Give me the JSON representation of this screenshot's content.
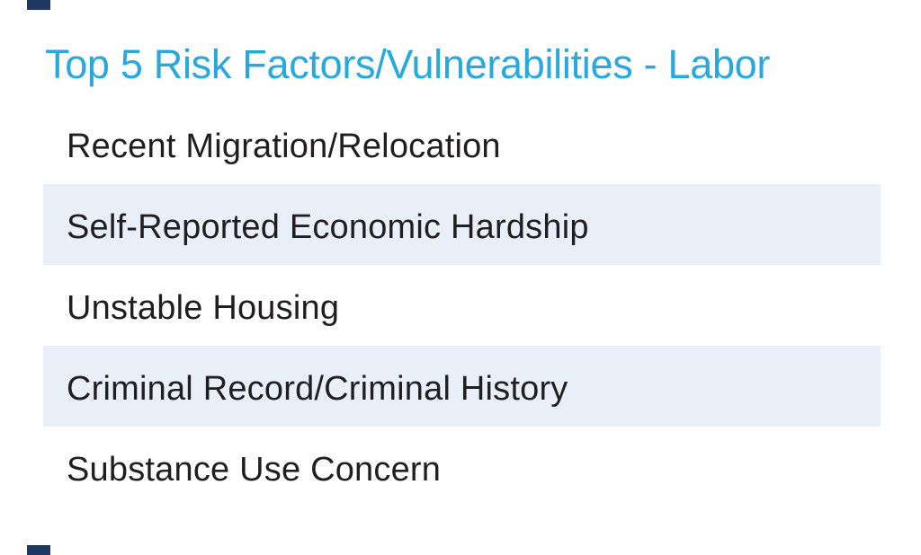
{
  "colors": {
    "background": "#ffffff",
    "title_accent": "#29a8dd",
    "stripe": "#e9eff8",
    "row_text": "#211e1f",
    "corner_mark": "#1f3864"
  },
  "title": {
    "text": "Top 5 Risk Factors/Vulnerabilities - Labor"
  },
  "risk_table": {
    "rows": [
      {
        "label": "Recent Migration/Relocation",
        "striped": false
      },
      {
        "label": "Self-Reported Economic Hardship",
        "striped": true
      },
      {
        "label": "Unstable Housing",
        "striped": false
      },
      {
        "label": "Criminal Record/Criminal History",
        "striped": true
      },
      {
        "label": "Substance Use Concern",
        "striped": false
      }
    ]
  }
}
